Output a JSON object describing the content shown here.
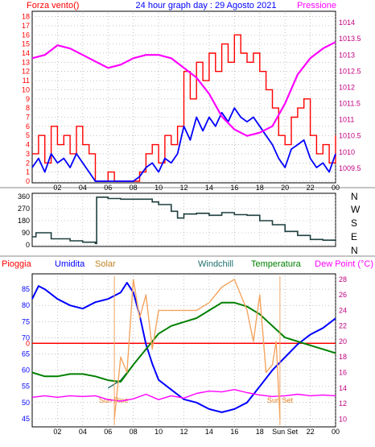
{
  "header": {
    "left": "Forza vento()",
    "center": "24 hour graph day : 29 Agosto 2021",
    "right": "Pressione"
  },
  "colors": {
    "wind": "#ff0000",
    "gust": "#0000ff",
    "pressure": "#ff00ff",
    "direction": "#1f3f3f",
    "rain": "#ff0000",
    "humidity": "#0000ff",
    "solar": "#f4a460",
    "windchill": "#1f6f6f",
    "temperature": "#008000",
    "dewpoint": "#ff00ff",
    "grid": "#9b9b9b",
    "axis_left": "#ff0000",
    "axis_right": "#c00080"
  },
  "panel2": {
    "compass_labels": [
      "N",
      "W",
      "S",
      "E",
      "N"
    ]
  },
  "panel3": {
    "legend": [
      {
        "label": "Pioggia",
        "color": "#ff0000"
      },
      {
        "label": "Umidita",
        "color": "#0000ff"
      },
      {
        "label": "Solar",
        "color": "#f4a460"
      },
      {
        "label": "Windchill",
        "color": "#1f6f6f"
      },
      {
        "label": "Temperatura",
        "color": "#008000"
      },
      {
        "label": "Dew Point (°C)",
        "color": "#ff00ff"
      }
    ],
    "sun_rise_label": "Sun Rise",
    "sun_set_label": "Sun Set",
    "x_last_labels": [
      "Sun Set",
      "22",
      "00"
    ]
  },
  "chart_data": [
    {
      "type": "line",
      "name_panel": "wind-pressure",
      "x_ticks": [
        "02",
        "04",
        "06",
        "08",
        "10",
        "12",
        "14",
        "16",
        "18",
        "20",
        "22",
        "00"
      ],
      "y_left_ticks": [
        0,
        1,
        2,
        3,
        4,
        5,
        6,
        7,
        8,
        9,
        10,
        11,
        12,
        13,
        14,
        15,
        16,
        17,
        18
      ],
      "y_left_range": [
        0,
        18.4
      ],
      "y_right_ticks": [
        1009.5,
        1010,
        1010.5,
        1011,
        1011.5,
        1012,
        1012.5,
        1013,
        1013.5,
        1014
      ],
      "y_right_range": [
        1009.1,
        1014.3
      ],
      "series": [
        {
          "name": "Forza vento",
          "axis": "left",
          "x": [
            0,
            0.5,
            1,
            1.5,
            2,
            2.5,
            3,
            3.5,
            4,
            4.5,
            5,
            5.5,
            6,
            6.5,
            7,
            7.5,
            8,
            8.5,
            9,
            9.5,
            10,
            10.5,
            11,
            11.5,
            12,
            12.5,
            13,
            13.5,
            14,
            14.5,
            15,
            15.5,
            16,
            16.5,
            17,
            17.5,
            18,
            18.5,
            19,
            19.5,
            20,
            20.5,
            21,
            21.5,
            22,
            22.5,
            23,
            23.5,
            24
          ],
          "values": [
            3,
            5,
            2,
            6,
            4,
            5,
            3,
            6,
            4,
            3,
            0,
            0,
            1,
            0,
            0,
            0,
            0,
            1,
            3,
            4,
            2,
            5,
            4,
            6,
            12,
            9,
            13,
            11,
            14,
            12,
            15,
            13,
            16,
            14,
            13,
            14,
            12,
            10,
            8,
            5,
            4,
            7,
            8,
            9,
            5,
            3,
            4,
            2,
            5
          ]
        },
        {
          "name": "Raffica",
          "axis": "left",
          "x": [
            0,
            0.5,
            1,
            1.5,
            2,
            2.5,
            3,
            3.5,
            4,
            4.5,
            5,
            5.5,
            6,
            6.5,
            7,
            7.5,
            8,
            8.5,
            9,
            9.5,
            10,
            10.5,
            11,
            11.5,
            12,
            12.5,
            13,
            13.5,
            14,
            14.5,
            15,
            15.5,
            16,
            16.5,
            17,
            17.5,
            18,
            18.5,
            19,
            19.5,
            20,
            20.5,
            21,
            21.5,
            22,
            22.5,
            23,
            23.5,
            24
          ],
          "values": [
            1.5,
            2.5,
            1,
            3,
            2,
            2.5,
            1.5,
            3,
            2,
            1,
            0,
            0,
            0,
            0,
            0,
            0,
            0,
            0.5,
            1.5,
            2,
            1,
            2.5,
            2,
            3,
            6,
            4.5,
            7,
            5.5,
            7,
            6,
            7.5,
            6.5,
            8,
            7,
            6.5,
            7,
            6,
            5,
            4,
            2.5,
            1.5,
            3.5,
            4,
            4.5,
            2.5,
            1.5,
            2,
            1,
            3
          ]
        },
        {
          "name": "Pressione",
          "axis": "right",
          "x": [
            0,
            1,
            2,
            3,
            4,
            5,
            6,
            7,
            8,
            9,
            10,
            11,
            12,
            13,
            14,
            15,
            16,
            17,
            18,
            19,
            20,
            21,
            22,
            23,
            24
          ],
          "values": [
            1012.9,
            1013.0,
            1013.3,
            1013.2,
            1013.0,
            1012.8,
            1012.6,
            1012.7,
            1012.9,
            1013.0,
            1013.0,
            1012.9,
            1012.6,
            1012.3,
            1011.8,
            1011.1,
            1010.7,
            1010.5,
            1010.6,
            1010.8,
            1011.5,
            1012.4,
            1012.9,
            1013.2,
            1013.4
          ]
        }
      ]
    },
    {
      "type": "line",
      "name_panel": "wind-direction",
      "x_ticks": [
        "02",
        "04",
        "06",
        "08",
        "10",
        "12",
        "14",
        "16",
        "18",
        "20",
        "22",
        "00"
      ],
      "y_ticks": [
        0,
        45,
        90,
        135,
        180,
        225,
        270,
        315,
        360
      ],
      "y_range": [
        0,
        360
      ],
      "series": [
        {
          "name": "Direzione",
          "x": [
            0,
            0.3,
            1,
            1.5,
            2,
            3,
            4,
            5,
            5.1,
            6,
            7,
            8,
            9,
            9.5,
            10,
            11,
            11.5,
            12,
            13,
            14,
            15,
            16,
            17,
            18,
            19,
            20,
            21,
            22,
            23,
            24
          ],
          "values": [
            60,
            90,
            90,
            45,
            45,
            30,
            20,
            10,
            355,
            345,
            340,
            340,
            340,
            320,
            300,
            250,
            200,
            230,
            235,
            220,
            240,
            225,
            220,
            180,
            150,
            100,
            70,
            40,
            35,
            40
          ]
        }
      ]
    },
    {
      "type": "line",
      "name_panel": "rain-humidity-temp",
      "x_ticks": [
        "02",
        "04",
        "06",
        "08",
        "10",
        "12",
        "14",
        "16",
        "18",
        "Sun Set",
        "22",
        "00"
      ],
      "y_left_ticks": [
        45,
        50,
        55,
        60,
        65,
        70,
        75,
        80,
        85
      ],
      "y_left_range": [
        43,
        89
      ],
      "y_right_ticks": [
        10,
        12,
        14,
        16,
        18,
        20,
        22,
        24,
        26,
        28
      ],
      "y_right_range": [
        9.2,
        28.4
      ],
      "rain_line_value": 0,
      "series": [
        {
          "name": "Umidita",
          "axis": "left",
          "x": [
            0,
            0.5,
            1,
            2,
            3,
            4,
            5,
            6,
            7,
            7.5,
            8,
            8.5,
            9,
            9.5,
            10,
            11,
            12,
            13,
            14,
            15,
            16,
            17,
            18,
            19,
            20,
            21,
            22,
            23,
            24
          ],
          "values": [
            82,
            86,
            85,
            82,
            80,
            79,
            81,
            82,
            84,
            87,
            84,
            77,
            68,
            62,
            57,
            54,
            51,
            50,
            48,
            47,
            48,
            50,
            55,
            60,
            64,
            68,
            71,
            73,
            76
          ]
        },
        {
          "name": "Windchill",
          "axis": "right",
          "x": [
            6,
            7,
            8,
            9,
            10,
            11,
            12,
            13,
            14,
            15,
            16,
            17,
            18,
            19,
            20,
            21,
            22,
            23,
            24
          ],
          "values": [
            14,
            15,
            17,
            19,
            21,
            22,
            22.5,
            23,
            24,
            25,
            25,
            24.5,
            23.5,
            22,
            20.5,
            20,
            19.5,
            19,
            18.5
          ]
        },
        {
          "name": "Temperatura",
          "axis": "right",
          "x": [
            0,
            1,
            2,
            3,
            4,
            5,
            6,
            7,
            8,
            9,
            10,
            11,
            12,
            13,
            14,
            15,
            16,
            17,
            18,
            19,
            20,
            21,
            22,
            23,
            24
          ],
          "values": [
            16,
            15.5,
            15.5,
            15.8,
            15.8,
            15.5,
            15,
            14.8,
            17,
            19,
            21,
            22,
            22.5,
            23,
            24,
            25,
            25,
            24.5,
            23.5,
            22,
            20.5,
            20,
            19.5,
            19,
            18.5
          ]
        },
        {
          "name": "Dew Point",
          "axis": "right",
          "x": [
            0,
            1,
            2,
            3,
            4,
            5,
            6,
            7,
            8,
            9,
            10,
            11,
            12,
            13,
            14,
            15,
            16,
            17,
            18,
            19,
            20,
            21,
            22,
            23,
            24
          ],
          "values": [
            12.8,
            13,
            12.8,
            13,
            12.9,
            13,
            12.5,
            12.3,
            12.6,
            13.2,
            12.5,
            13,
            12.7,
            13.3,
            13.6,
            13.5,
            13.8,
            13.4,
            13.1,
            12.9,
            13,
            13.2,
            13,
            13.1,
            13.0
          ]
        },
        {
          "name": "Solar",
          "axis": "right",
          "x": [
            6.5,
            7,
            7.5,
            8,
            8.5,
            9,
            9.5,
            10,
            11,
            12,
            13,
            14,
            15,
            16,
            16.5,
            17,
            17.5,
            18,
            18.5,
            19,
            19.3,
            19.6
          ],
          "values": [
            10,
            18,
            16,
            28,
            23,
            26,
            19,
            24,
            24,
            24,
            24,
            25,
            27,
            28,
            26,
            24,
            20,
            26,
            16,
            17,
            20,
            10
          ]
        }
      ]
    }
  ]
}
